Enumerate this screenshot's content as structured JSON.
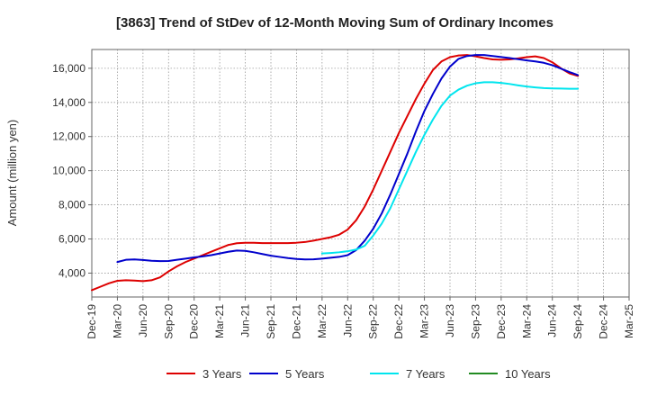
{
  "chart_data": {
    "type": "line",
    "title": "[3863]  Trend of StDev of 12-Month Moving Sum of Ordinary Incomes",
    "ylabel": "Amount (million yen)",
    "xlabel": "",
    "ylim": [
      2600,
      17100
    ],
    "yticks": [
      4000,
      6000,
      8000,
      10000,
      12000,
      14000,
      16000
    ],
    "ytick_labels": [
      "4,000",
      "6,000",
      "8,000",
      "10,000",
      "12,000",
      "14,000",
      "16,000"
    ],
    "xtick_labels": [
      "Dec-19",
      "Mar-20",
      "Jun-20",
      "Sep-20",
      "Dec-20",
      "Mar-21",
      "Jun-21",
      "Sep-21",
      "Dec-21",
      "Mar-22",
      "Jun-22",
      "Sep-22",
      "Dec-22",
      "Mar-23",
      "Jun-23",
      "Sep-23",
      "Dec-23",
      "Mar-24",
      "Jun-24",
      "Sep-24",
      "Dec-24",
      "Mar-25"
    ],
    "grid": true,
    "legend_position": "bottom",
    "series": [
      {
        "name": "3 Years",
        "color": "#dd0000",
        "start_index": 0,
        "values": [
          3000,
          3200,
          3400,
          3550,
          3580,
          3560,
          3530,
          3580,
          3750,
          4100,
          4400,
          4650,
          4850,
          5050,
          5250,
          5450,
          5650,
          5750,
          5780,
          5780,
          5760,
          5760,
          5760,
          5760,
          5780,
          5820,
          5900,
          6000,
          6100,
          6250,
          6550,
          7100,
          7900,
          8900,
          10000,
          11100,
          12200,
          13200,
          14200,
          15100,
          15900,
          16400,
          16650,
          16750,
          16780,
          16700,
          16600,
          16520,
          16500,
          16520,
          16580,
          16650,
          16700,
          16600,
          16350,
          16000,
          15700,
          15550
        ]
      },
      {
        "name": "5 Years",
        "color": "#0000cc",
        "start_index": 3,
        "values": [
          4650,
          4780,
          4800,
          4770,
          4720,
          4700,
          4710,
          4780,
          4850,
          4920,
          4980,
          5050,
          5150,
          5250,
          5320,
          5300,
          5220,
          5120,
          5020,
          4950,
          4880,
          4830,
          4800,
          4810,
          4850,
          4900,
          4950,
          5050,
          5350,
          5900,
          6600,
          7500,
          8600,
          9800,
          11000,
          12300,
          13500,
          14500,
          15400,
          16100,
          16550,
          16720,
          16780,
          16780,
          16720,
          16660,
          16600,
          16530,
          16460,
          16400,
          16320,
          16180,
          15980,
          15780,
          15600
        ]
      },
      {
        "name": "7 Years",
        "color": "#00e5ee",
        "start_index": 27,
        "values": [
          5150,
          5180,
          5220,
          5280,
          5380,
          5600,
          6200,
          6900,
          7800,
          8900,
          10000,
          11100,
          12100,
          13000,
          13800,
          14400,
          14750,
          14980,
          15120,
          15180,
          15180,
          15140,
          15080,
          15000,
          14930,
          14880,
          14840,
          14820,
          14810,
          14800,
          14800
        ]
      },
      {
        "name": "10 Years",
        "color": "#228b22",
        "start_index": 0,
        "values": []
      }
    ]
  }
}
